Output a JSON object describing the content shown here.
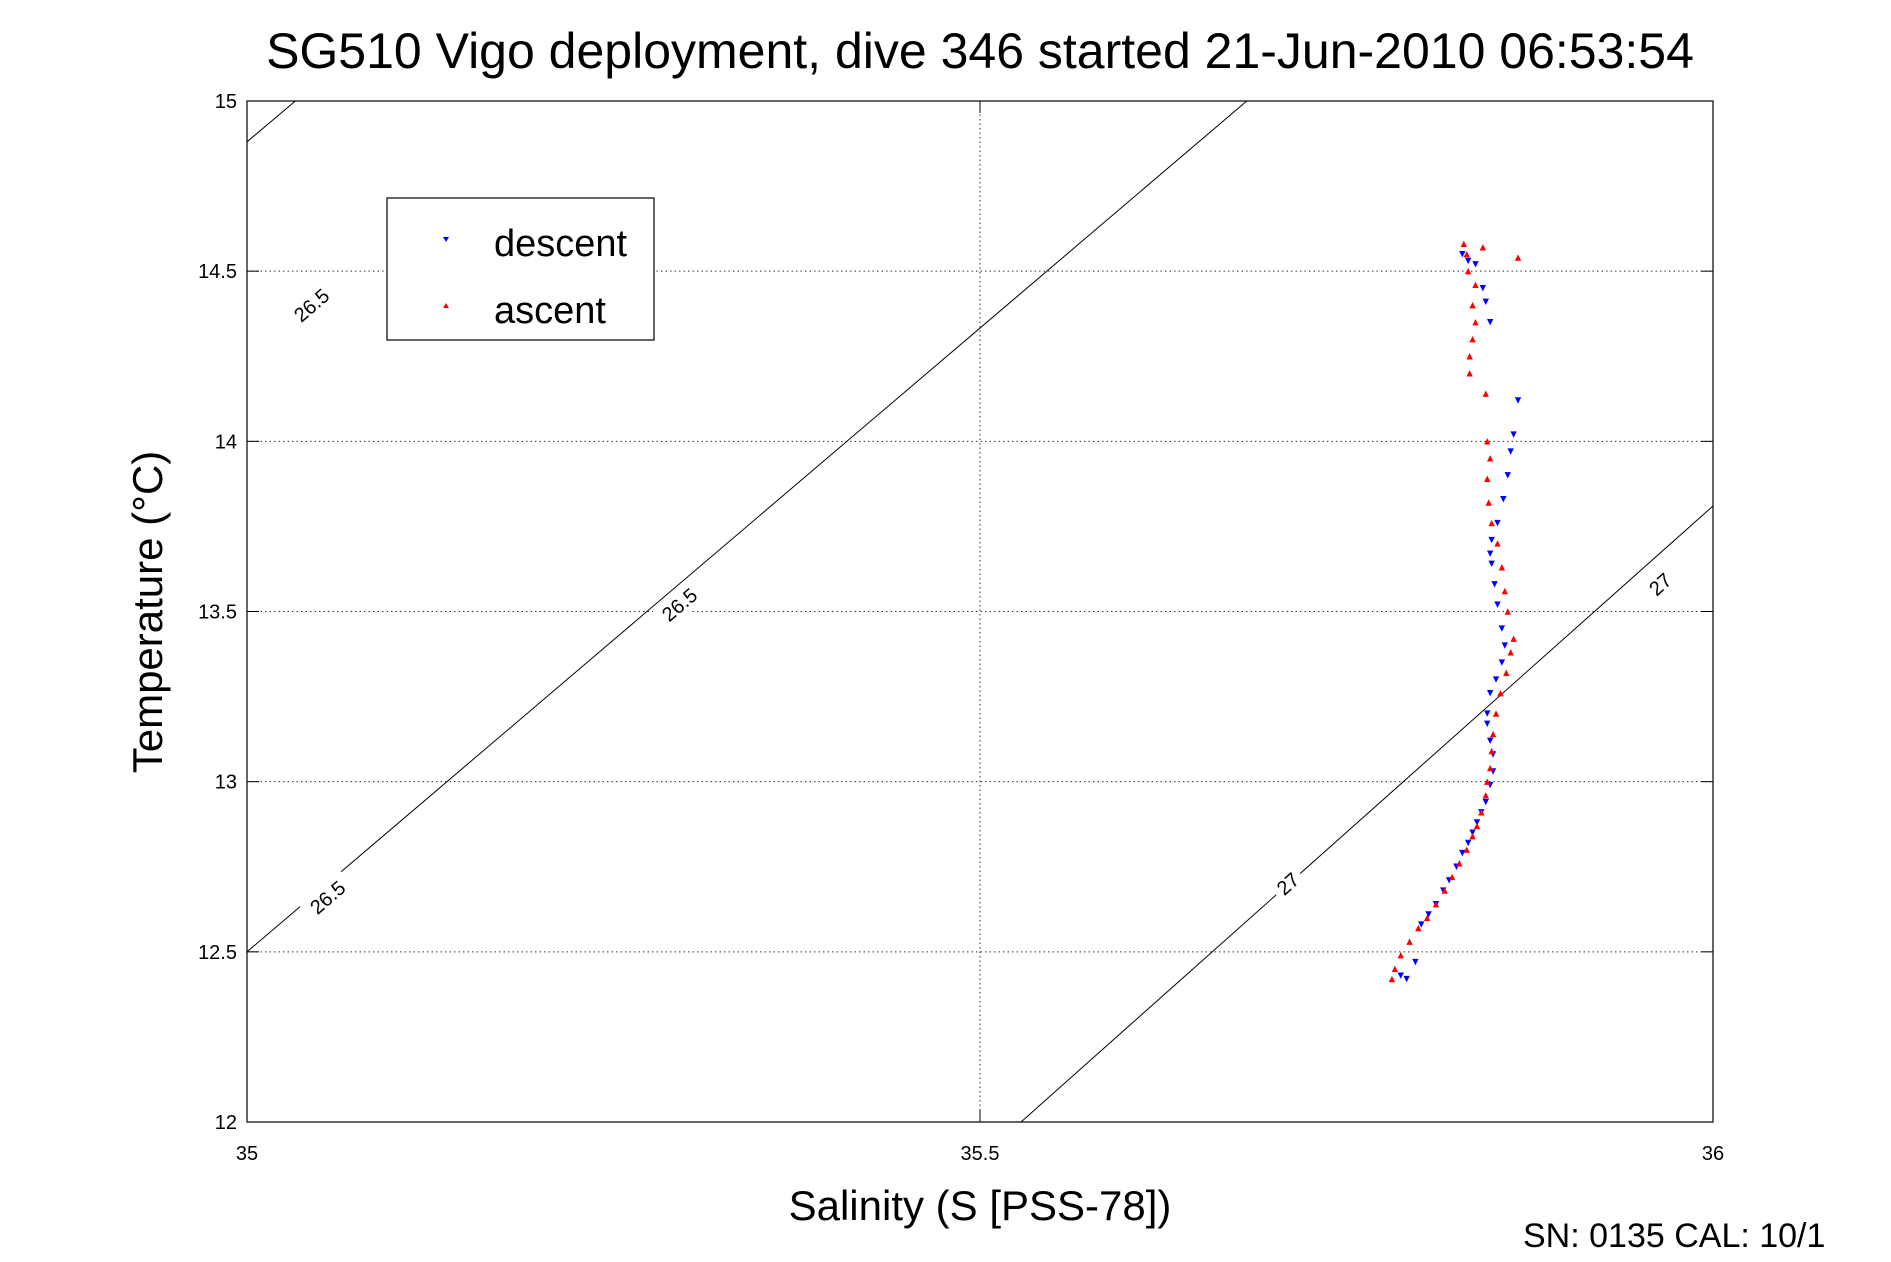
{
  "chart_data": {
    "type": "scatter",
    "title": "SG510 Vigo deployment, dive 346 started 21-Jun-2010 06:53:54",
    "xlabel": "Salinity (S [PSS-78])",
    "ylabel": "Temperature (°C)",
    "xlim": [
      35,
      36
    ],
    "ylim": [
      12,
      15
    ],
    "xticks": [
      "35",
      "35.5",
      "36"
    ],
    "yticks": [
      "12",
      "12.5",
      "13",
      "13.5",
      "14",
      "14.5",
      "15"
    ],
    "grid": true,
    "legend_position": "top-left",
    "series": [
      {
        "name": "descent",
        "marker": "triangle-down",
        "color": "#0000ff",
        "points": [
          [
            35.787,
            12.43
          ],
          [
            35.791,
            12.42
          ],
          [
            35.797,
            12.47
          ],
          [
            35.801,
            12.58
          ],
          [
            35.806,
            12.61
          ],
          [
            35.811,
            12.64
          ],
          [
            35.816,
            12.68
          ],
          [
            35.82,
            12.71
          ],
          [
            35.825,
            12.75
          ],
          [
            35.829,
            12.79
          ],
          [
            35.833,
            12.82
          ],
          [
            35.836,
            12.85
          ],
          [
            35.839,
            12.88
          ],
          [
            35.842,
            12.91
          ],
          [
            35.845,
            12.94
          ],
          [
            35.848,
            12.99
          ],
          [
            35.85,
            13.03
          ],
          [
            35.85,
            13.08
          ],
          [
            35.848,
            13.12
          ],
          [
            35.846,
            13.17
          ],
          [
            35.846,
            13.2
          ],
          [
            35.848,
            13.26
          ],
          [
            35.852,
            13.3
          ],
          [
            35.856,
            13.35
          ],
          [
            35.858,
            13.4
          ],
          [
            35.856,
            13.45
          ],
          [
            35.853,
            13.52
          ],
          [
            35.851,
            13.58
          ],
          [
            35.849,
            13.64
          ],
          [
            35.848,
            13.67
          ],
          [
            35.849,
            13.71
          ],
          [
            35.853,
            13.76
          ],
          [
            35.857,
            13.83
          ],
          [
            35.86,
            13.9
          ],
          [
            35.862,
            13.97
          ],
          [
            35.864,
            14.02
          ],
          [
            35.867,
            14.12
          ],
          [
            35.845,
            14.41
          ],
          [
            35.848,
            14.35
          ],
          [
            35.843,
            14.45
          ],
          [
            35.838,
            14.52
          ],
          [
            35.833,
            14.53
          ],
          [
            35.829,
            14.55
          ]
        ]
      },
      {
        "name": "ascent",
        "marker": "triangle-up",
        "color": "#ff0000",
        "points": [
          [
            35.781,
            12.42
          ],
          [
            35.783,
            12.45
          ],
          [
            35.787,
            12.49
          ],
          [
            35.793,
            12.53
          ],
          [
            35.799,
            12.57
          ],
          [
            35.805,
            12.6
          ],
          [
            35.811,
            12.64
          ],
          [
            35.817,
            12.68
          ],
          [
            35.822,
            12.72
          ],
          [
            35.827,
            12.76
          ],
          [
            35.832,
            12.8
          ],
          [
            35.836,
            12.84
          ],
          [
            35.839,
            12.87
          ],
          [
            35.842,
            12.91
          ],
          [
            35.845,
            12.96
          ],
          [
            35.846,
            13.0
          ],
          [
            35.848,
            13.04
          ],
          [
            35.849,
            13.09
          ],
          [
            35.85,
            13.14
          ],
          [
            35.852,
            13.2
          ],
          [
            35.855,
            13.26
          ],
          [
            35.859,
            13.32
          ],
          [
            35.862,
            13.38
          ],
          [
            35.864,
            13.42
          ],
          [
            35.86,
            13.5
          ],
          [
            35.858,
            13.56
          ],
          [
            35.856,
            13.63
          ],
          [
            35.853,
            13.7
          ],
          [
            35.849,
            13.76
          ],
          [
            35.847,
            13.82
          ],
          [
            35.846,
            13.89
          ],
          [
            35.848,
            13.95
          ],
          [
            35.846,
            14.0
          ],
          [
            35.845,
            14.14
          ],
          [
            35.834,
            14.2
          ],
          [
            35.834,
            14.25
          ],
          [
            35.836,
            14.3
          ],
          [
            35.838,
            14.35
          ],
          [
            35.836,
            14.4
          ],
          [
            35.838,
            14.46
          ],
          [
            35.833,
            14.5
          ],
          [
            35.832,
            14.55
          ],
          [
            35.83,
            14.58
          ],
          [
            35.867,
            14.54
          ],
          [
            35.843,
            14.57
          ]
        ]
      }
    ],
    "isopycnals": [
      {
        "label": "26.5",
        "points": [
          [
            35.0,
            14.88
          ],
          [
            35.033,
            15.0
          ]
        ],
        "label_positions": []
      },
      {
        "label": "26.5",
        "points": [
          [
            35.0,
            12.5
          ],
          [
            35.682,
            15.0
          ]
        ],
        "label_positions": [
          [
            35.055,
            12.66
          ],
          [
            35.295,
            13.52
          ],
          [
            35.044,
            14.4
          ]
        ]
      },
      {
        "label": "27",
        "points": [
          [
            35.528,
            12.0
          ],
          [
            36.0,
            13.81
          ]
        ],
        "label_positions": [
          [
            35.71,
            12.7
          ],
          [
            35.964,
            13.58
          ]
        ]
      }
    ],
    "annotation": "SN: 0135  CAL: 10/1"
  }
}
